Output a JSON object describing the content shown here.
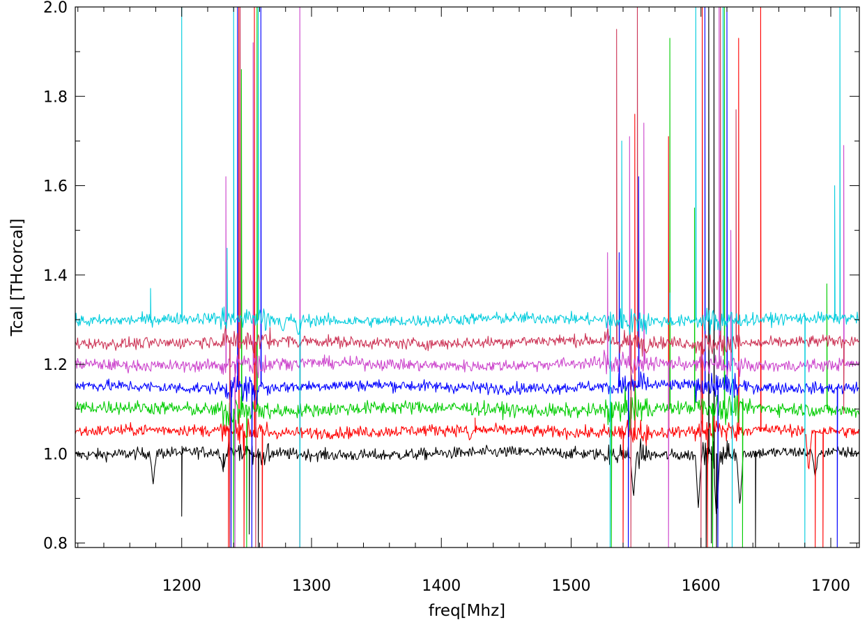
{
  "chart_data": {
    "type": "line",
    "title": "",
    "xlabel": "freq[Mhz]",
    "ylabel": "Tcal [THcorcal]",
    "xlim": [
      1118,
      1722
    ],
    "ylim": [
      0.79,
      2.0
    ],
    "x_ticks": [
      1200,
      1300,
      1400,
      1500,
      1600,
      1700
    ],
    "x_tick_labels": [
      "1200",
      "1300",
      "1400",
      "1500",
      "1600",
      "1700"
    ],
    "y_ticks": [
      0.8,
      1.0,
      1.2,
      1.4,
      1.6,
      1.8,
      2.0
    ],
    "y_tick_labels": [
      "0.8",
      "1.0",
      "1.2",
      "1.4",
      "1.6",
      "1.8",
      "2.0"
    ],
    "legend": "none",
    "grid": false,
    "series": [
      {
        "color": "#000000",
        "baseline": 1.0,
        "noise": 0.006,
        "dips": [
          [
            1178,
            0.93
          ],
          [
            1232,
            0.96
          ],
          [
            1548,
            0.9
          ],
          [
            1598,
            0.88
          ],
          [
            1612,
            0.85
          ],
          [
            1630,
            0.88
          ],
          [
            1688,
            0.95
          ]
        ],
        "spikes": [
          [
            1200,
            0.86
          ],
          [
            1232,
            0.96
          ],
          [
            1252,
            0.82
          ],
          [
            1259,
            0.79
          ],
          [
            1604,
            0.79
          ],
          [
            1606,
            2.0
          ],
          [
            1608,
            0.8
          ],
          [
            1610,
            2.0
          ],
          [
            1612,
            0.79
          ],
          [
            1642,
            0.79
          ]
        ]
      },
      {
        "color": "#ff0000",
        "baseline": 1.05,
        "noise": 0.006,
        "dips": [
          [
            1422,
            1.03
          ],
          [
            1683,
            0.96
          ]
        ],
        "spikes": [
          [
            1236,
            0.79
          ],
          [
            1244,
            2.0
          ],
          [
            1248,
            0.79
          ],
          [
            1256,
            2.0
          ],
          [
            1262,
            0.79
          ],
          [
            1426,
            1.08
          ],
          [
            1540,
            0.79
          ],
          [
            1549,
            1.76
          ],
          [
            1575,
            1.71
          ],
          [
            1601,
            2.0
          ],
          [
            1605,
            0.79
          ],
          [
            1629,
            1.93
          ],
          [
            1646,
            2.0
          ],
          [
            1688,
            0.79
          ],
          [
            1694,
            0.79
          ]
        ]
      },
      {
        "color": "#00cc00",
        "baseline": 1.1,
        "noise": 0.007,
        "dips": [],
        "spikes": [
          [
            1240,
            0.79
          ],
          [
            1246,
            1.86
          ],
          [
            1250,
            0.79
          ],
          [
            1258,
            2.0
          ],
          [
            1531,
            0.79
          ],
          [
            1576,
            1.93
          ],
          [
            1595,
            1.55
          ],
          [
            1609,
            0.79
          ],
          [
            1618,
            2.0
          ],
          [
            1632,
            0.79
          ],
          [
            1697,
            1.38
          ]
        ]
      },
      {
        "color": "#0000ff",
        "baseline": 1.15,
        "noise": 0.006,
        "dips": [],
        "spikes": [
          [
            1238,
            0.79
          ],
          [
            1243,
            2.0
          ],
          [
            1254,
            0.79
          ],
          [
            1261,
            2.0
          ],
          [
            1537,
            1.45
          ],
          [
            1544,
            0.79
          ],
          [
            1552,
            1.62
          ],
          [
            1603,
            2.0
          ],
          [
            1613,
            0.79
          ],
          [
            1620,
            2.0
          ],
          [
            1705,
            0.79
          ]
        ]
      },
      {
        "color": "#cc44cc",
        "baseline": 1.2,
        "noise": 0.006,
        "dips": [],
        "spikes": [
          [
            1234,
            1.62
          ],
          [
            1241,
            0.79
          ],
          [
            1255,
            1.92
          ],
          [
            1291,
            2.0
          ],
          [
            1528,
            1.45
          ],
          [
            1545,
            1.71
          ],
          [
            1556,
            1.74
          ],
          [
            1575,
            0.79
          ],
          [
            1614,
            2.0
          ],
          [
            1623,
            1.5
          ],
          [
            1710,
            1.69
          ]
        ]
      },
      {
        "color": "#cc3355",
        "baseline": 1.25,
        "noise": 0.006,
        "dips": [
          [
            1290,
            1.24
          ]
        ],
        "spikes": [
          [
            1237,
            0.79
          ],
          [
            1245,
            2.0
          ],
          [
            1257,
            0.79
          ],
          [
            1291,
            0.79
          ],
          [
            1535,
            1.95
          ],
          [
            1546,
            0.79
          ],
          [
            1551,
            2.0
          ],
          [
            1600,
            0.79
          ],
          [
            1615,
            2.0
          ],
          [
            1627,
            1.77
          ],
          [
            1710,
            1.09
          ]
        ]
      },
      {
        "color": "#00ccdd",
        "baseline": 1.3,
        "noise": 0.006,
        "dips": [
          [
            1278,
            1.27
          ],
          [
            1290,
            1.26
          ]
        ],
        "spikes": [
          [
            1176,
            1.37
          ],
          [
            1200,
            2.0
          ],
          [
            1235,
            1.46
          ],
          [
            1240,
            2.0
          ],
          [
            1259,
            2.0
          ],
          [
            1291,
            0.79
          ],
          [
            1530,
            0.79
          ],
          [
            1539,
            1.7
          ],
          [
            1576,
            1.36
          ],
          [
            1596,
            2.0
          ],
          [
            1617,
            2.0
          ],
          [
            1624,
            0.79
          ],
          [
            1680,
            0.79
          ],
          [
            1703,
            1.6
          ],
          [
            1707,
            2.0
          ]
        ]
      }
    ]
  }
}
